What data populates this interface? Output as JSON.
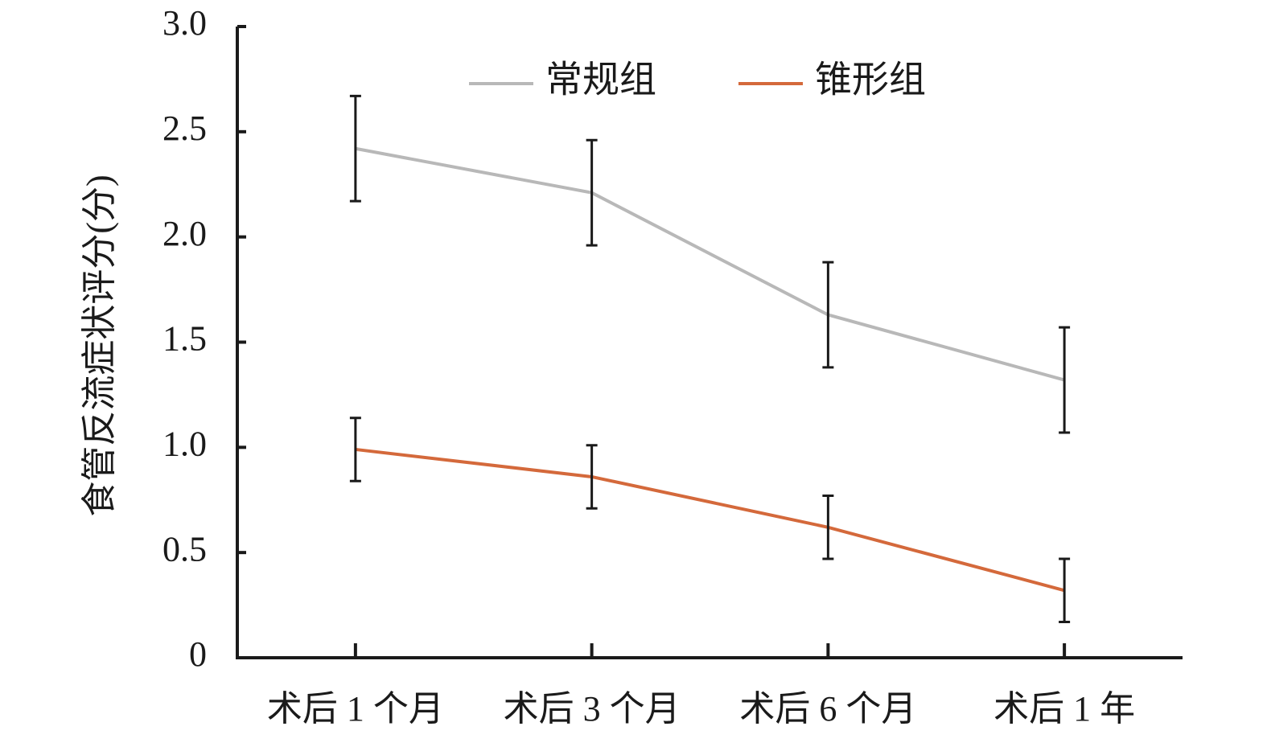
{
  "chart_data": {
    "type": "line",
    "y_label": "食管反流症状评分(分)",
    "categories": [
      "术后 1 个月",
      "术后 3 个月",
      "术后 6 个月",
      "术后 1 年"
    ],
    "series": [
      {
        "name": "常规组",
        "color": "#b8b8b8",
        "values": [
          2.42,
          2.21,
          1.63,
          1.32
        ],
        "errors": [
          0.25,
          0.25,
          0.25,
          0.25
        ]
      },
      {
        "name": "锥形组",
        "color": "#d4693b",
        "values": [
          0.99,
          0.86,
          0.62,
          0.32
        ],
        "errors": [
          0.15,
          0.15,
          0.15,
          0.15
        ]
      }
    ],
    "ylim": [
      0,
      3
    ],
    "yticks": [
      0,
      0.5,
      {
        "value": 1,
        "label": "1.0"
      },
      1.5,
      {
        "value": 2,
        "label": "2.0"
      },
      2.5,
      {
        "value": 3,
        "label": "3.0"
      }
    ],
    "legend": "top"
  }
}
